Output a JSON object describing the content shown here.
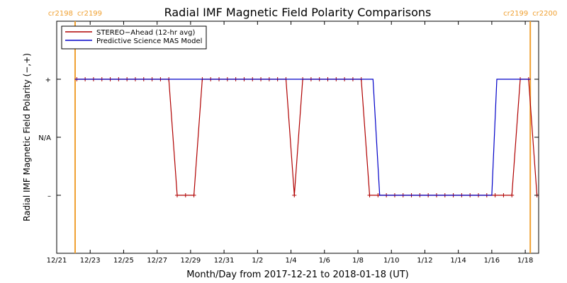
{
  "chart_data": {
    "type": "line",
    "title": "Radial IMF Magnetic Field Polarity Comparisons",
    "xlabel": "Month/Day from 2017-12-21 to 2018-01-18 (UT)",
    "ylabel": "Radial IMF Magnetic Field Polarity (−,+)",
    "x_unit": "days after 2017-12-21 00:00 UT",
    "xlim": [
      0,
      28.8
    ],
    "x_ticks": [
      {
        "x": 0,
        "label": "12/21"
      },
      {
        "x": 2,
        "label": "12/23"
      },
      {
        "x": 4,
        "label": "12/25"
      },
      {
        "x": 6,
        "label": "12/27"
      },
      {
        "x": 8,
        "label": "12/29"
      },
      {
        "x": 10,
        "label": "12/31"
      },
      {
        "x": 12,
        "label": "1/2"
      },
      {
        "x": 14,
        "label": "1/4"
      },
      {
        "x": 16,
        "label": "1/6"
      },
      {
        "x": 18,
        "label": "1/8"
      },
      {
        "x": 20,
        "label": "1/10"
      },
      {
        "x": 22,
        "label": "1/12"
      },
      {
        "x": 24,
        "label": "1/14"
      },
      {
        "x": 26,
        "label": "1/16"
      },
      {
        "x": 28,
        "label": "1/18"
      }
    ],
    "ylim": [
      -2,
      2
    ],
    "y_ticks": [
      {
        "y": 1,
        "label": "+"
      },
      {
        "y": 0,
        "label": "N/A"
      },
      {
        "y": -1,
        "label": "–"
      }
    ],
    "rotations": [
      {
        "x": 1.1,
        "left_label": "cr2198",
        "right_label": "cr2199"
      },
      {
        "x": 28.3,
        "left_label": "cr2199",
        "right_label": "cr2200"
      }
    ],
    "rotation_color": "#f0a030",
    "legend_position": "top-left",
    "series": [
      {
        "name": "STEREO−Ahead (12-hr avg)",
        "color": "#b00000",
        "markers": true,
        "x": [
          1.2,
          1.7,
          2.2,
          2.7,
          3.2,
          3.7,
          4.2,
          4.7,
          5.2,
          5.7,
          6.2,
          6.7,
          7.2,
          7.7,
          8.2,
          8.7,
          9.2,
          9.7,
          10.2,
          10.7,
          11.2,
          11.7,
          12.2,
          12.7,
          13.2,
          13.7,
          14.2,
          14.7,
          15.2,
          15.7,
          16.2,
          16.7,
          17.2,
          17.7,
          18.2,
          18.7,
          19.2,
          19.7,
          20.2,
          20.7,
          21.2,
          21.7,
          22.2,
          22.7,
          23.2,
          23.7,
          24.2,
          24.7,
          25.2,
          25.7,
          26.2,
          26.7,
          27.2,
          27.7,
          28.2,
          28.7
        ],
        "y": [
          1,
          1,
          1,
          1,
          1,
          1,
          1,
          1,
          1,
          1,
          1,
          1,
          -1,
          -1,
          -1,
          1,
          1,
          1,
          1,
          1,
          1,
          1,
          1,
          1,
          1,
          1,
          -1,
          1,
          1,
          1,
          1,
          1,
          1,
          1,
          1,
          -1,
          -1,
          -1,
          -1,
          -1,
          -1,
          -1,
          -1,
          -1,
          -1,
          -1,
          -1,
          -1,
          -1,
          -1,
          -1,
          -1,
          -1,
          1,
          1,
          -1
        ]
      },
      {
        "name": "Predictive Science MAS Model",
        "color": "#0000c8",
        "markers": false,
        "x": [
          1.1,
          18.9,
          19.3,
          26.0,
          26.3,
          28.3
        ],
        "y": [
          1,
          1,
          -1,
          -1,
          1,
          1
        ]
      }
    ]
  }
}
